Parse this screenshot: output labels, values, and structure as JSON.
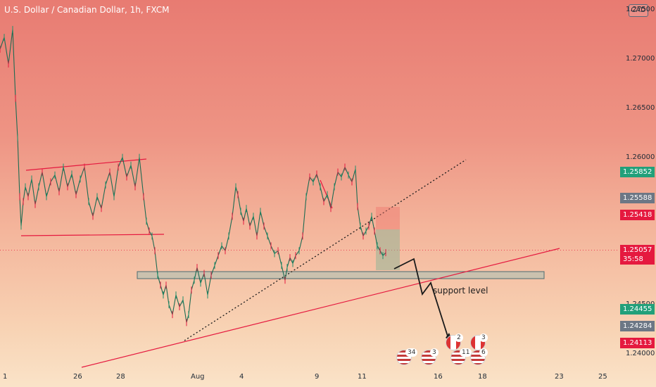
{
  "header": {
    "title": "U.S. Dollar / Canadian Dollar, 1h, FXCM",
    "currency": "CAD"
  },
  "annotations": {
    "support_label": "support level"
  },
  "price_tags": [
    {
      "label": "1.25852",
      "style": "green",
      "value": 1.25852
    },
    {
      "label": "1.25588",
      "style": "gray",
      "value": 1.25588
    },
    {
      "label": "1.25418",
      "style": "red",
      "value": 1.25418
    },
    {
      "label": "1.25057",
      "sub": "35:58",
      "style": "price",
      "value": 1.25057
    },
    {
      "label": "1.24455",
      "style": "green",
      "value": 1.24455
    },
    {
      "label": "1.24284",
      "style": "gray",
      "value": 1.24284
    },
    {
      "label": "1.24113",
      "style": "red",
      "value": 1.24113
    }
  ],
  "events": [
    {
      "count": "34",
      "flag": "us"
    },
    {
      "count": "3",
      "flag": "us"
    },
    {
      "count": "2",
      "flag": "ca"
    },
    {
      "count": "11",
      "flag": "us"
    },
    {
      "count": "3",
      "flag": "ca"
    },
    {
      "count": "6",
      "flag": "us"
    }
  ],
  "chart_data": {
    "type": "line",
    "title": "U.S. Dollar / Canadian Dollar, 1h, FXCM",
    "xlabel": "",
    "ylabel": "",
    "ylim": [
      1.2385,
      1.276
    ],
    "y_ticks": [
      "1.27500",
      "1.27000",
      "1.26500",
      "1.26000",
      "1.24500",
      "1.24000"
    ],
    "y_tick_values": [
      1.275,
      1.27,
      1.265,
      1.26,
      1.245,
      1.24
    ],
    "x_ticks": [
      "1",
      "26",
      "28",
      "Aug",
      "4",
      "9",
      "11",
      "16",
      "18",
      "23",
      "25"
    ],
    "series": [
      {
        "x": [
          0,
          6,
          12,
          18,
          22,
          25,
          28,
          30,
          33,
          36,
          40,
          45,
          50,
          55,
          60,
          66,
          72,
          78,
          84,
          90,
          96,
          102,
          108,
          114,
          120,
          126,
          132,
          138,
          144,
          150,
          156,
          162,
          168,
          174,
          180,
          186,
          192,
          198,
          204,
          208,
          212,
          216,
          220,
          224,
          228,
          232,
          236,
          240,
          245,
          250,
          255,
          260,
          265,
          268,
          272,
          276,
          280,
          285,
          290,
          295,
          300,
          305,
          310,
          315,
          320,
          325,
          330,
          335,
          338,
          342,
          346,
          350,
          355,
          360,
          365,
          370,
          375,
          380,
          385,
          390,
          395,
          400,
          405,
          408,
          412,
          416,
          420,
          425,
          430,
          435,
          440,
          445,
          450,
          455,
          460,
          465,
          470,
          475,
          480,
          485,
          490,
          495,
          500,
          505,
          508,
          512,
          516,
          520,
          524,
          528,
          532,
          536,
          540,
          544,
          548
        ],
        "y": [
          1.271,
          1.2722,
          1.2695,
          1.273,
          1.266,
          1.262,
          1.256,
          1.253,
          1.2555,
          1.257,
          1.256,
          1.2578,
          1.2552,
          1.257,
          1.2585,
          1.256,
          1.2575,
          1.2582,
          1.2565,
          1.259,
          1.257,
          1.2583,
          1.2562,
          1.2578,
          1.259,
          1.2555,
          1.254,
          1.256,
          1.2548,
          1.2572,
          1.2585,
          1.256,
          1.259,
          1.26,
          1.258,
          1.2592,
          1.257,
          1.26,
          1.256,
          1.2535,
          1.2525,
          1.252,
          1.2505,
          1.248,
          1.247,
          1.246,
          1.247,
          1.245,
          1.244,
          1.246,
          1.2448,
          1.2455,
          1.2432,
          1.244,
          1.2465,
          1.2475,
          1.2488,
          1.2472,
          1.2482,
          1.246,
          1.248,
          1.249,
          1.25,
          1.251,
          1.2505,
          1.252,
          1.254,
          1.257,
          1.2562,
          1.2545,
          1.2535,
          1.2548,
          1.253,
          1.254,
          1.252,
          1.2545,
          1.253,
          1.252,
          1.251,
          1.2502,
          1.2505,
          1.249,
          1.2475,
          1.2488,
          1.2498,
          1.2492,
          1.25,
          1.2505,
          1.252,
          1.256,
          1.258,
          1.2575,
          1.2583,
          1.257,
          1.2555,
          1.2562,
          1.2548,
          1.257,
          1.2585,
          1.258,
          1.259,
          1.2582,
          1.2575,
          1.2588,
          1.255,
          1.253,
          1.252,
          1.2525,
          1.253,
          1.254,
          1.2525,
          1.251,
          1.2505,
          1.25,
          1.2503
        ]
      }
    ],
    "current_price": 1.25057,
    "countdown": "35:58",
    "support_label": "support level"
  }
}
